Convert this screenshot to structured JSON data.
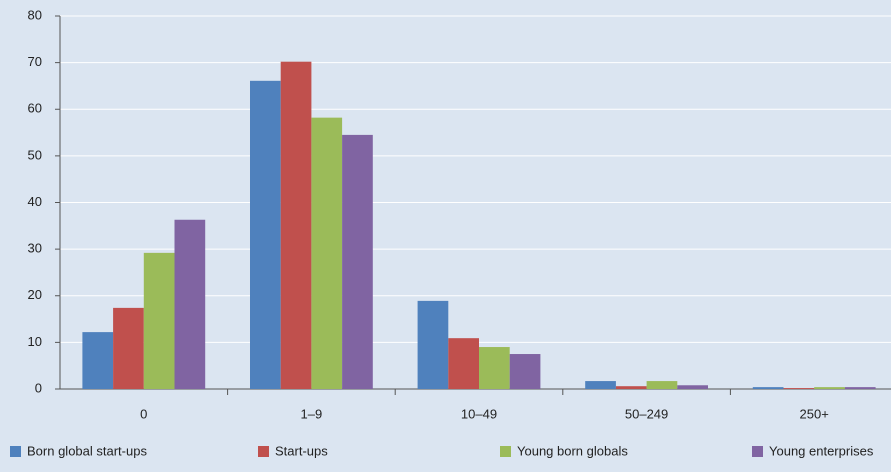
{
  "chart_data": {
    "type": "bar",
    "categories": [
      "0",
      "1–9",
      "10–49",
      "50–249",
      "250+"
    ],
    "series": [
      {
        "name": "Born global start-ups",
        "color": "#4f81bd",
        "values": [
          12.2,
          66.1,
          18.9,
          1.7,
          0.4
        ]
      },
      {
        "name": "Start-ups",
        "color": "#c0504d",
        "values": [
          17.4,
          70.2,
          10.9,
          0.6,
          0.2
        ]
      },
      {
        "name": "Young born globals",
        "color": "#9bbb59",
        "values": [
          29.2,
          58.2,
          9.0,
          1.7,
          0.4
        ]
      },
      {
        "name": "Young enterprises",
        "color": "#8064a2",
        "values": [
          36.3,
          54.5,
          7.5,
          0.8,
          0.4
        ]
      }
    ],
    "ylim": [
      0,
      80
    ],
    "yticks": [
      0,
      10,
      20,
      30,
      40,
      50,
      60,
      70,
      80
    ],
    "grid": true
  }
}
